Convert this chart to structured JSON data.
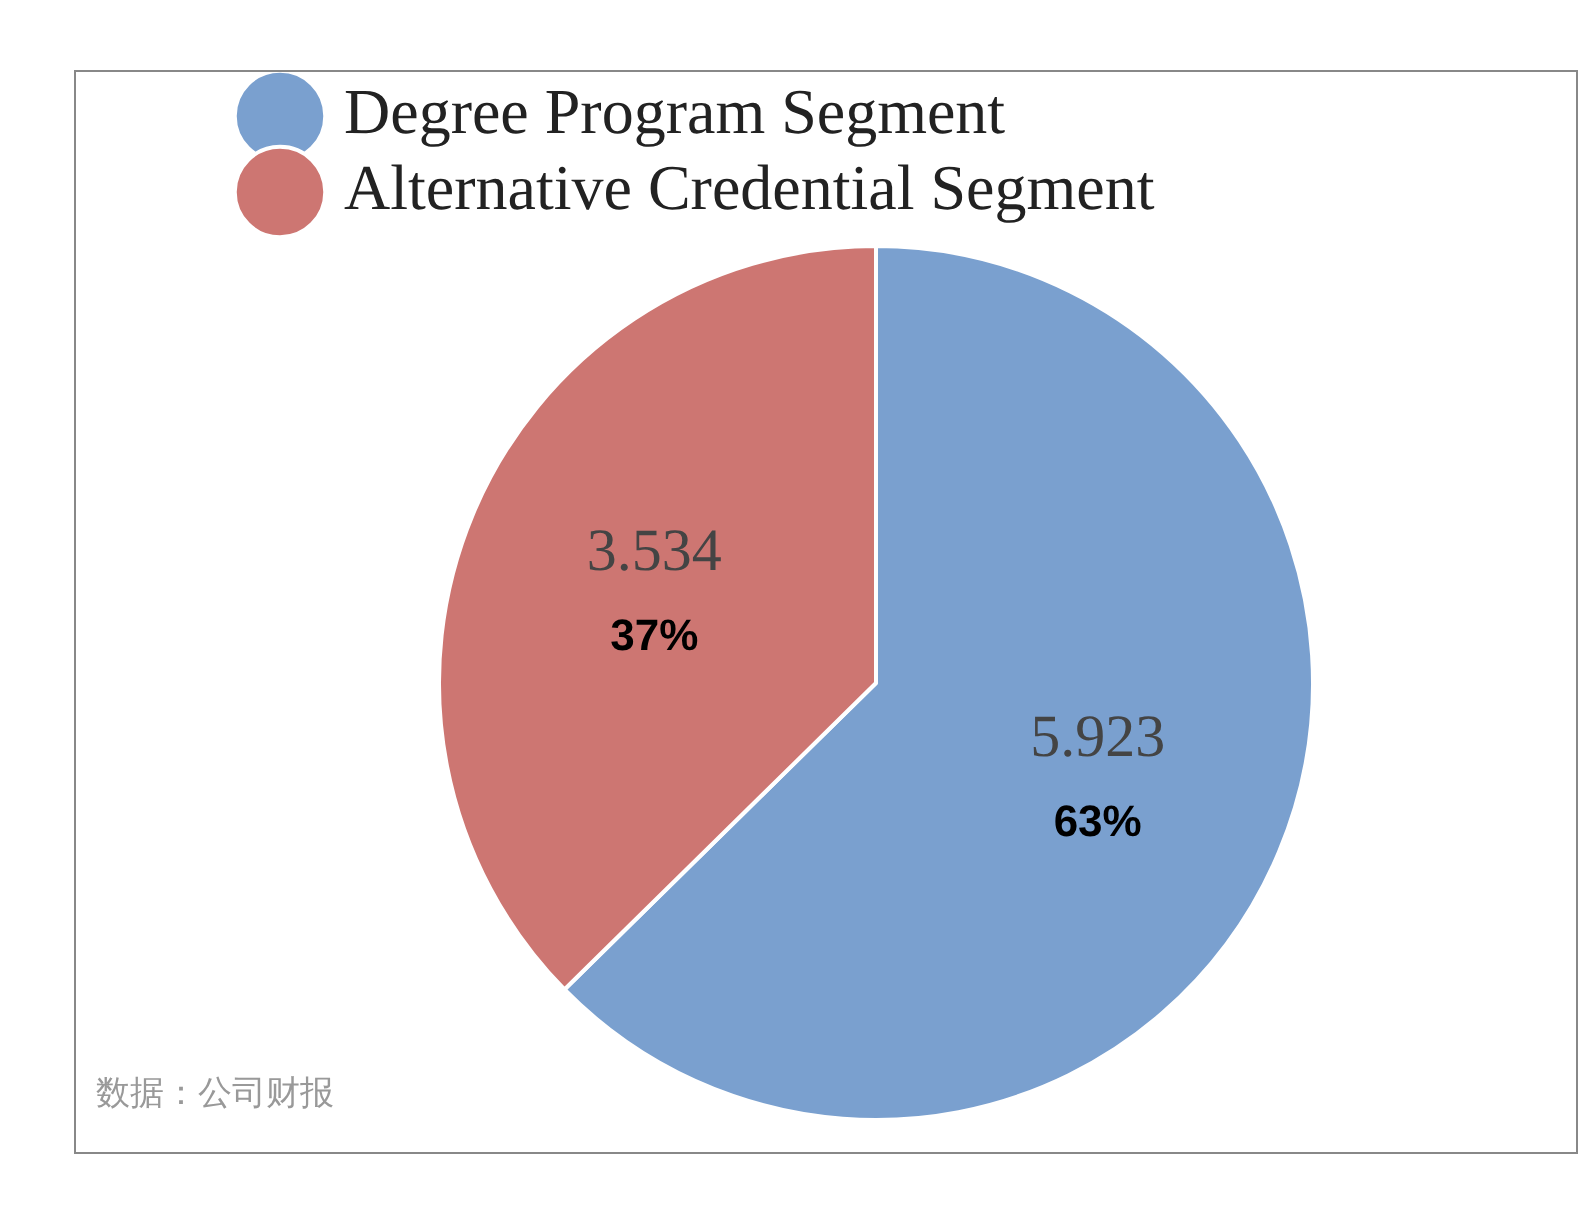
{
  "chart_data": {
    "type": "pie",
    "categories": [
      "Degree Program Segment",
      "Alternative Credential Segment"
    ],
    "values": [
      5.923,
      3.534
    ],
    "colors": [
      "#7aa0cf",
      "#cd7672"
    ],
    "value_labels": [
      "5.923\n63%",
      "3.534\n37%"
    ],
    "legend": "top left",
    "annotations": [
      "数据：公司财报"
    ]
  }
}
